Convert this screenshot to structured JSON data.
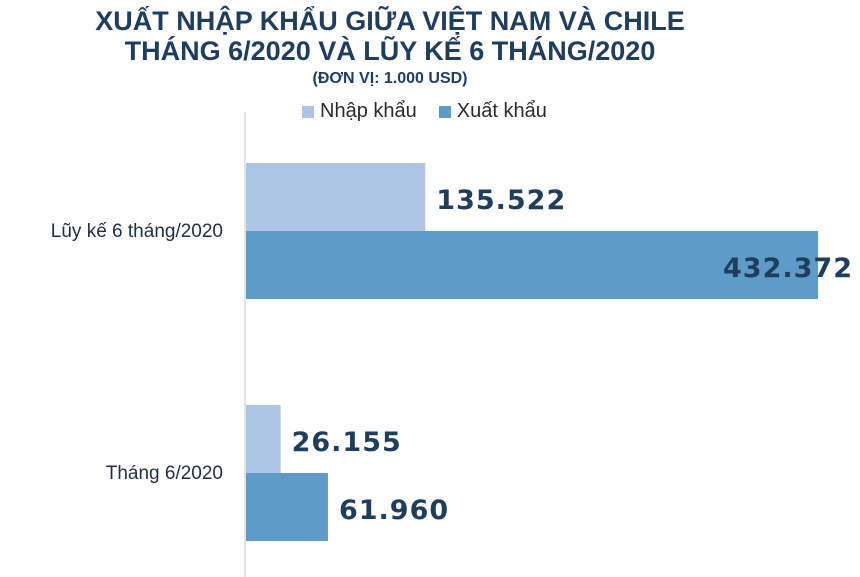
{
  "title_line1": "XUẤT NHẬP KHẨU GIỮA VIỆT NAM VÀ CHILE",
  "title_line2": "THÁNG 6/2020 VÀ LŨY KẾ 6 THÁNG/2020",
  "unit": "(ĐƠN VỊ: 1.000 USD)",
  "colors": {
    "import": "#aec6e3",
    "export": "#5f9bc8",
    "title": "#1f3d5c"
  },
  "chart_data": {
    "type": "bar",
    "orientation": "horizontal",
    "title": "XUẤT NHẬP KHẨU GIỮA VIỆT NAM VÀ CHILE THÁNG 6/2020 VÀ LŨY KẾ 6 THÁNG/2020",
    "subtitle": "(ĐƠN VỊ: 1.000 USD)",
    "categories": [
      "Lũy kế 6 tháng/2020",
      "Tháng 6/2020"
    ],
    "series": [
      {
        "name": "Nhập khẩu",
        "values": [
          135522,
          26155
        ],
        "labels": [
          "135.522",
          "26.155"
        ]
      },
      {
        "name": "Xuất khẩu",
        "values": [
          432372,
          61960
        ],
        "labels": [
          "432.372",
          "61.960"
        ]
      }
    ],
    "legend_position": "top",
    "grid": false,
    "xlim": [
      0,
      432372
    ]
  }
}
